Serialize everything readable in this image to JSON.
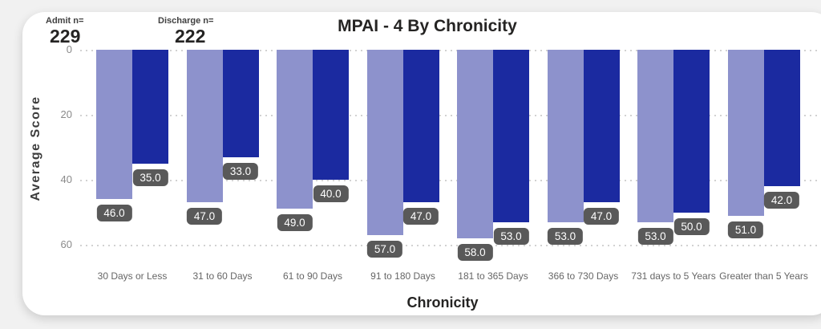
{
  "header": {
    "admit_label": "Admit n=",
    "admit_value": "229",
    "discharge_label": "Discharge n=",
    "discharge_value": "222"
  },
  "chart_data": {
    "type": "bar",
    "title": "MPAI - 4 By Chronicity",
    "xlabel": "Chronicity",
    "ylabel": "Average Score",
    "ylim": [
      0,
      60
    ],
    "yticks": [
      0,
      20,
      40,
      60
    ],
    "y_axis_inverted": true,
    "grid": "horizontal-dotted",
    "legend_position": "none",
    "categories": [
      "30 Days or Less",
      "31 to 60 Days",
      "61 to 90 Days",
      "91 to 180 Days",
      "181 to 365 Days",
      "366 to 730 Days",
      "731 days to 5 Years",
      "Greater than 5 Years"
    ],
    "series": [
      {
        "name": "Admit",
        "color": "#8d92cc",
        "values": [
          46.0,
          47.0,
          49.0,
          57.0,
          58.0,
          53.0,
          53.0,
          51.0
        ]
      },
      {
        "name": "Discharge",
        "color": "#1b2aa0",
        "values": [
          35.0,
          33.0,
          40.0,
          47.0,
          53.0,
          47.0,
          50.0,
          42.0
        ]
      }
    ],
    "value_labels": {
      "format": "one-decimal",
      "background": "#595959",
      "text_color": "#ffffff"
    }
  },
  "colors": {
    "page_background": "#f1f1f1",
    "card_background": "#ffffff",
    "gridline": "#d2d2d2",
    "tick_text": "#8a8a8a",
    "category_text": "#666666",
    "title_text": "#252423"
  }
}
